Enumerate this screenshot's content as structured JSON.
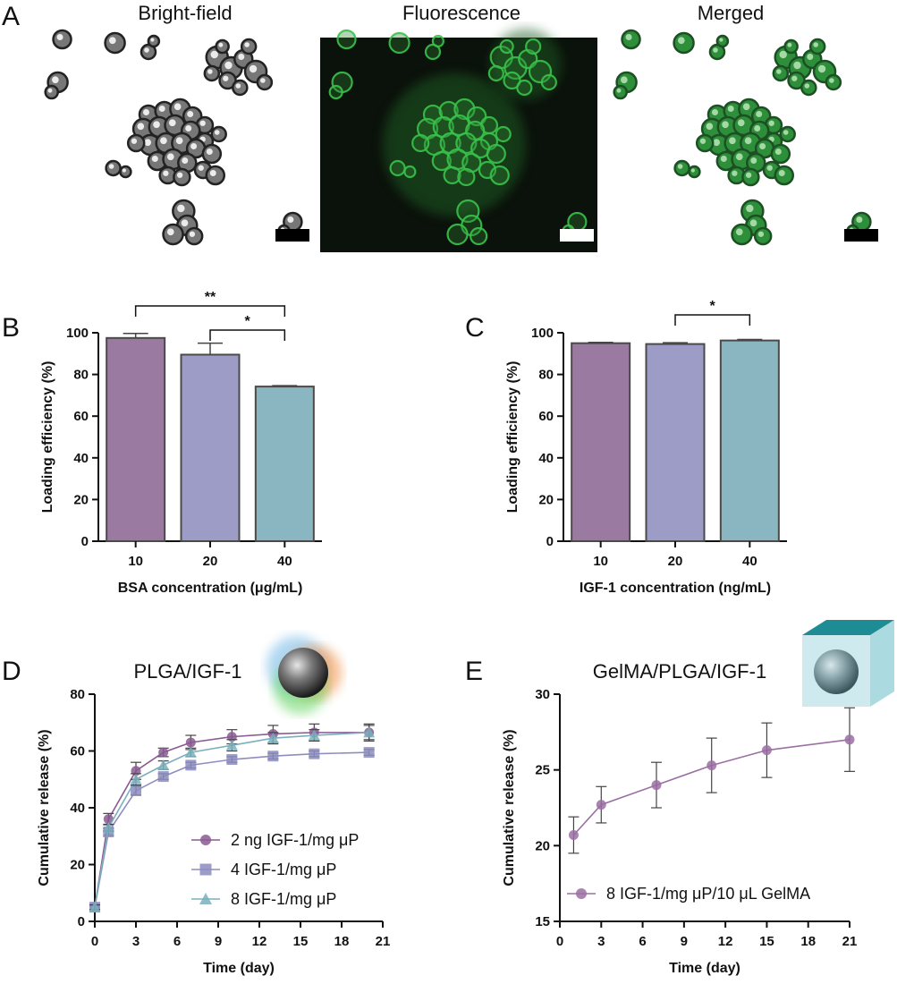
{
  "panel_a": {
    "label": "A",
    "images": [
      {
        "title": "Bright-field",
        "mode": "brightfield"
      },
      {
        "title": "Fluorescence",
        "mode": "fluorescence"
      },
      {
        "title": "Merged",
        "mode": "merged"
      }
    ],
    "colors": {
      "fluor_bg": "#0b110b",
      "fluor_green": "#38c24a",
      "merged_green": "#2e8f3a",
      "dark": "#222222"
    }
  },
  "chart_data": [
    {
      "panel": "B",
      "type": "bar",
      "categories": [
        "10",
        "20",
        "40"
      ],
      "values": [
        97.5,
        89.5,
        74.2
      ],
      "errors": [
        2.2,
        5.5,
        0.4
      ],
      "colors": [
        "#9b7aa1",
        "#9c9cc6",
        "#8ab6c2"
      ],
      "xlabel": "BSA concentration (μg/mL)",
      "ylabel": "Loading efficiency (%)",
      "ylim": [
        0,
        100
      ],
      "yticks": [
        0,
        20,
        40,
        60,
        80,
        100
      ],
      "significance": [
        {
          "from": 0,
          "to": 2,
          "label": "**"
        },
        {
          "from": 1,
          "to": 2,
          "label": "*"
        }
      ]
    },
    {
      "panel": "C",
      "type": "bar",
      "categories": [
        "10",
        "20",
        "40"
      ],
      "values": [
        95.0,
        94.6,
        96.3
      ],
      "errors": [
        0.4,
        0.6,
        0.5
      ],
      "colors": [
        "#9b7aa1",
        "#9c9cc6",
        "#8ab6c2"
      ],
      "xlabel": "IGF-1 concentration (ng/mL)",
      "ylabel": "Loading efficiency (%)",
      "ylim": [
        0,
        100
      ],
      "yticks": [
        0,
        20,
        40,
        60,
        80,
        100
      ],
      "significance": [
        {
          "from": 1,
          "to": 2,
          "label": "*"
        }
      ]
    },
    {
      "panel": "D",
      "type": "line",
      "title": "PLGA/IGF-1",
      "xlabel": "Time (day)",
      "ylabel": "Cumulative release (%)",
      "xlim": [
        0,
        21
      ],
      "ylim": [
        0,
        80
      ],
      "xticks": [
        0,
        3,
        6,
        9,
        12,
        15,
        18,
        21
      ],
      "yticks": [
        0,
        20,
        40,
        60,
        80
      ],
      "legend_position": "bottom-right",
      "series": [
        {
          "name": "2 ng IGF-1/mg μP",
          "marker": "circle",
          "color": "#8a5a93",
          "x": [
            0,
            1,
            3,
            5,
            7,
            10,
            13,
            16,
            20
          ],
          "y": [
            5,
            36,
            53,
            59.5,
            63,
            65,
            66,
            66.5,
            66.5
          ],
          "err": [
            1,
            2,
            3,
            1.5,
            2.5,
            2.5,
            3,
            3,
            3
          ]
        },
        {
          "name": "4 IGF-1/mg μP",
          "marker": "square",
          "color": "#8d8dc0",
          "x": [
            0,
            1,
            3,
            5,
            7,
            10,
            13,
            16,
            20
          ],
          "y": [
            5,
            31.5,
            46,
            51,
            55,
            57,
            58.2,
            59,
            59.5
          ],
          "err": [
            0.8,
            1.2,
            1.5,
            1,
            1,
            1,
            1,
            1,
            1
          ]
        },
        {
          "name": "8 IGF-1/mg μP",
          "marker": "triangle",
          "color": "#7ab0bd",
          "x": [
            0,
            1,
            3,
            5,
            7,
            10,
            13,
            16,
            20
          ],
          "y": [
            5,
            33,
            50,
            55,
            59.5,
            62,
            64.5,
            65.5,
            66.5
          ],
          "err": [
            0.8,
            1.2,
            2,
            1.5,
            1.5,
            2,
            2,
            2,
            2.5
          ]
        }
      ]
    },
    {
      "panel": "E",
      "type": "line",
      "title": "GelMA/PLGA/IGF-1",
      "xlabel": "Time (day)",
      "ylabel": "Cumulative release (%)",
      "xlim": [
        0,
        21
      ],
      "ylim": [
        15,
        30
      ],
      "xticks": [
        0,
        3,
        6,
        9,
        12,
        15,
        18,
        21
      ],
      "yticks": [
        15,
        20,
        25,
        30
      ],
      "legend_position": "bottom-right",
      "series": [
        {
          "name": "8 IGF-1/mg μP/10 μL GelMA",
          "marker": "circle",
          "color": "#9b6fa3",
          "x": [
            1,
            3,
            7,
            11,
            15,
            21
          ],
          "y": [
            20.7,
            22.7,
            24.0,
            25.3,
            26.3,
            27.0
          ],
          "err": [
            1.2,
            1.2,
            1.5,
            1.8,
            1.8,
            2.1
          ]
        }
      ]
    }
  ]
}
